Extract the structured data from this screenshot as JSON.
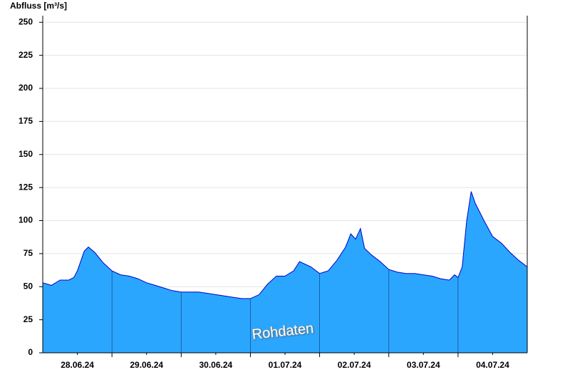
{
  "chart_data": {
    "type": "area",
    "y_label": "Abfluss [m³/s]",
    "annotation": "Rohdaten",
    "x": [
      0,
      0.125,
      0.25,
      0.375,
      0.45,
      0.5,
      0.6,
      0.66,
      0.75,
      0.875,
      1.0,
      1.125,
      1.25,
      1.375,
      1.5,
      1.625,
      1.75,
      1.875,
      2.0,
      2.125,
      2.25,
      2.375,
      2.5,
      2.625,
      2.75,
      2.875,
      3.0,
      3.125,
      3.25,
      3.375,
      3.5,
      3.625,
      3.71,
      3.875,
      4.0,
      4.125,
      4.25,
      4.375,
      4.45,
      4.52,
      4.59,
      4.65,
      4.75,
      4.875,
      5.0,
      5.125,
      5.25,
      5.375,
      5.5,
      5.625,
      5.75,
      5.875,
      5.95,
      6.0,
      6.06,
      6.125,
      6.19,
      6.25,
      6.375,
      6.5,
      6.625,
      6.75,
      6.875,
      7.0
    ],
    "series": [
      {
        "color": "#2aa6ff",
        "line_color": "#0000c8",
        "values": [
          53,
          51,
          55,
          55,
          57,
          62,
          77,
          80,
          76,
          68,
          62,
          59,
          58,
          56,
          53,
          51,
          49,
          47,
          46,
          46,
          46,
          45,
          44,
          43,
          42,
          41,
          41,
          44,
          52,
          58,
          58,
          62,
          69,
          65,
          60,
          62,
          70,
          80,
          90,
          86,
          94,
          79,
          74,
          69,
          63,
          61,
          60,
          60,
          59,
          58,
          56,
          55,
          59,
          57,
          65,
          100,
          122,
          113,
          100,
          88,
          83,
          76,
          70,
          65
        ]
      }
    ],
    "xlim": [
      0,
      7
    ],
    "xticks": [
      {
        "value": 0.5,
        "label": "28.06.24"
      },
      {
        "value": 1.5,
        "label": "29.06.24"
      },
      {
        "value": 2.5,
        "label": "30.06.24"
      },
      {
        "value": 3.5,
        "label": "01.07.24"
      },
      {
        "value": 4.5,
        "label": "02.07.24"
      },
      {
        "value": 5.5,
        "label": "03.07.24"
      },
      {
        "value": 6.5,
        "label": "04.07.24"
      }
    ],
    "day_lines": [
      1,
      2,
      3,
      4,
      5,
      6
    ],
    "ylim": [
      0,
      255
    ],
    "yticks": [
      0,
      25,
      50,
      75,
      100,
      125,
      150,
      175,
      200,
      225,
      250
    ],
    "grid": true
  }
}
